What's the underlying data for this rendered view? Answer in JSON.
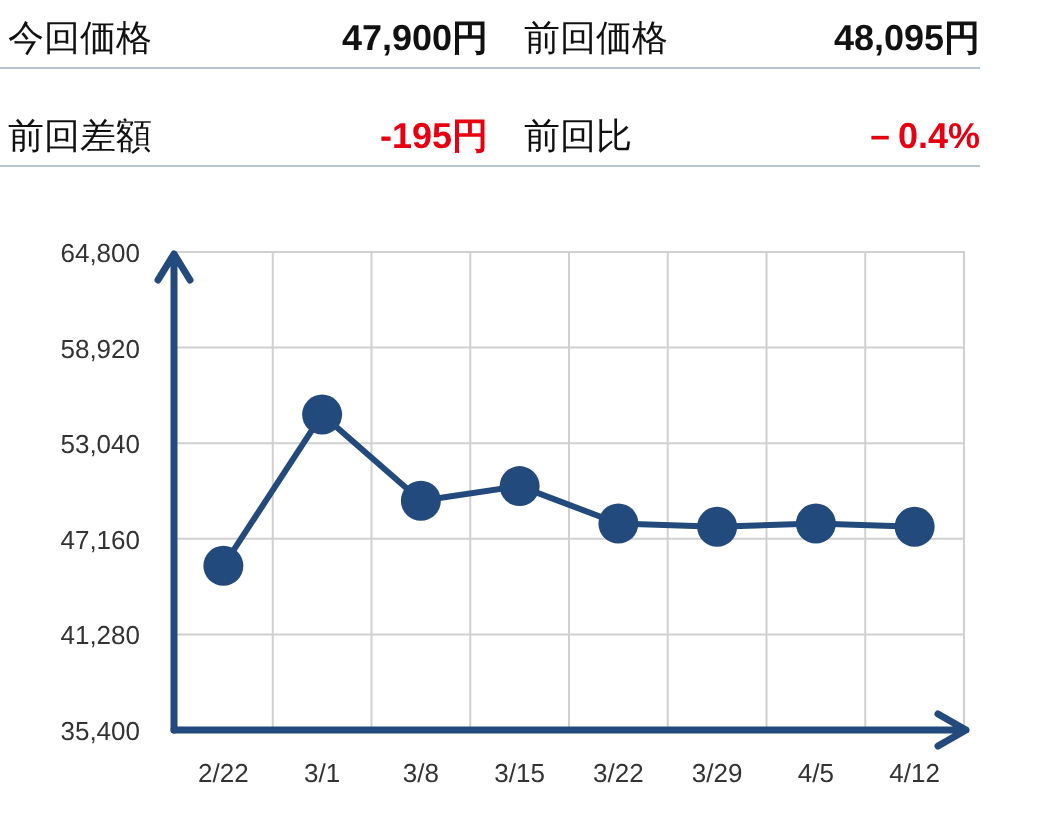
{
  "chart_data": {
    "type": "line",
    "annotations": [
      "今回価格",
      "47,900円",
      "前回価格",
      "48,095円",
      "前回差額",
      "-195円",
      "前回比",
      "－0.4%"
    ],
    "categories": [
      "2/22",
      "3/1",
      "3/8",
      "3/15",
      "3/22",
      "3/29",
      "4/5",
      "4/12"
    ],
    "series": [
      {
        "color": "#234a7c",
        "values": [
          45500,
          54800,
          49500,
          50400,
          48100,
          47900,
          48095,
          47900
        ]
      }
    ],
    "ylim": [
      35400,
      64800
    ],
    "yticks": [
      {
        "value": 35400,
        "label": "35,400"
      },
      {
        "value": 41280,
        "label": "41,280"
      },
      {
        "value": 47160,
        "label": "47,160"
      },
      {
        "value": 53040,
        "label": "53,040"
      },
      {
        "value": 58920,
        "label": "58,920"
      },
      {
        "value": 64800,
        "label": "64,800"
      }
    ],
    "grid": true,
    "marker": "circle",
    "line_style": "solid"
  }
}
